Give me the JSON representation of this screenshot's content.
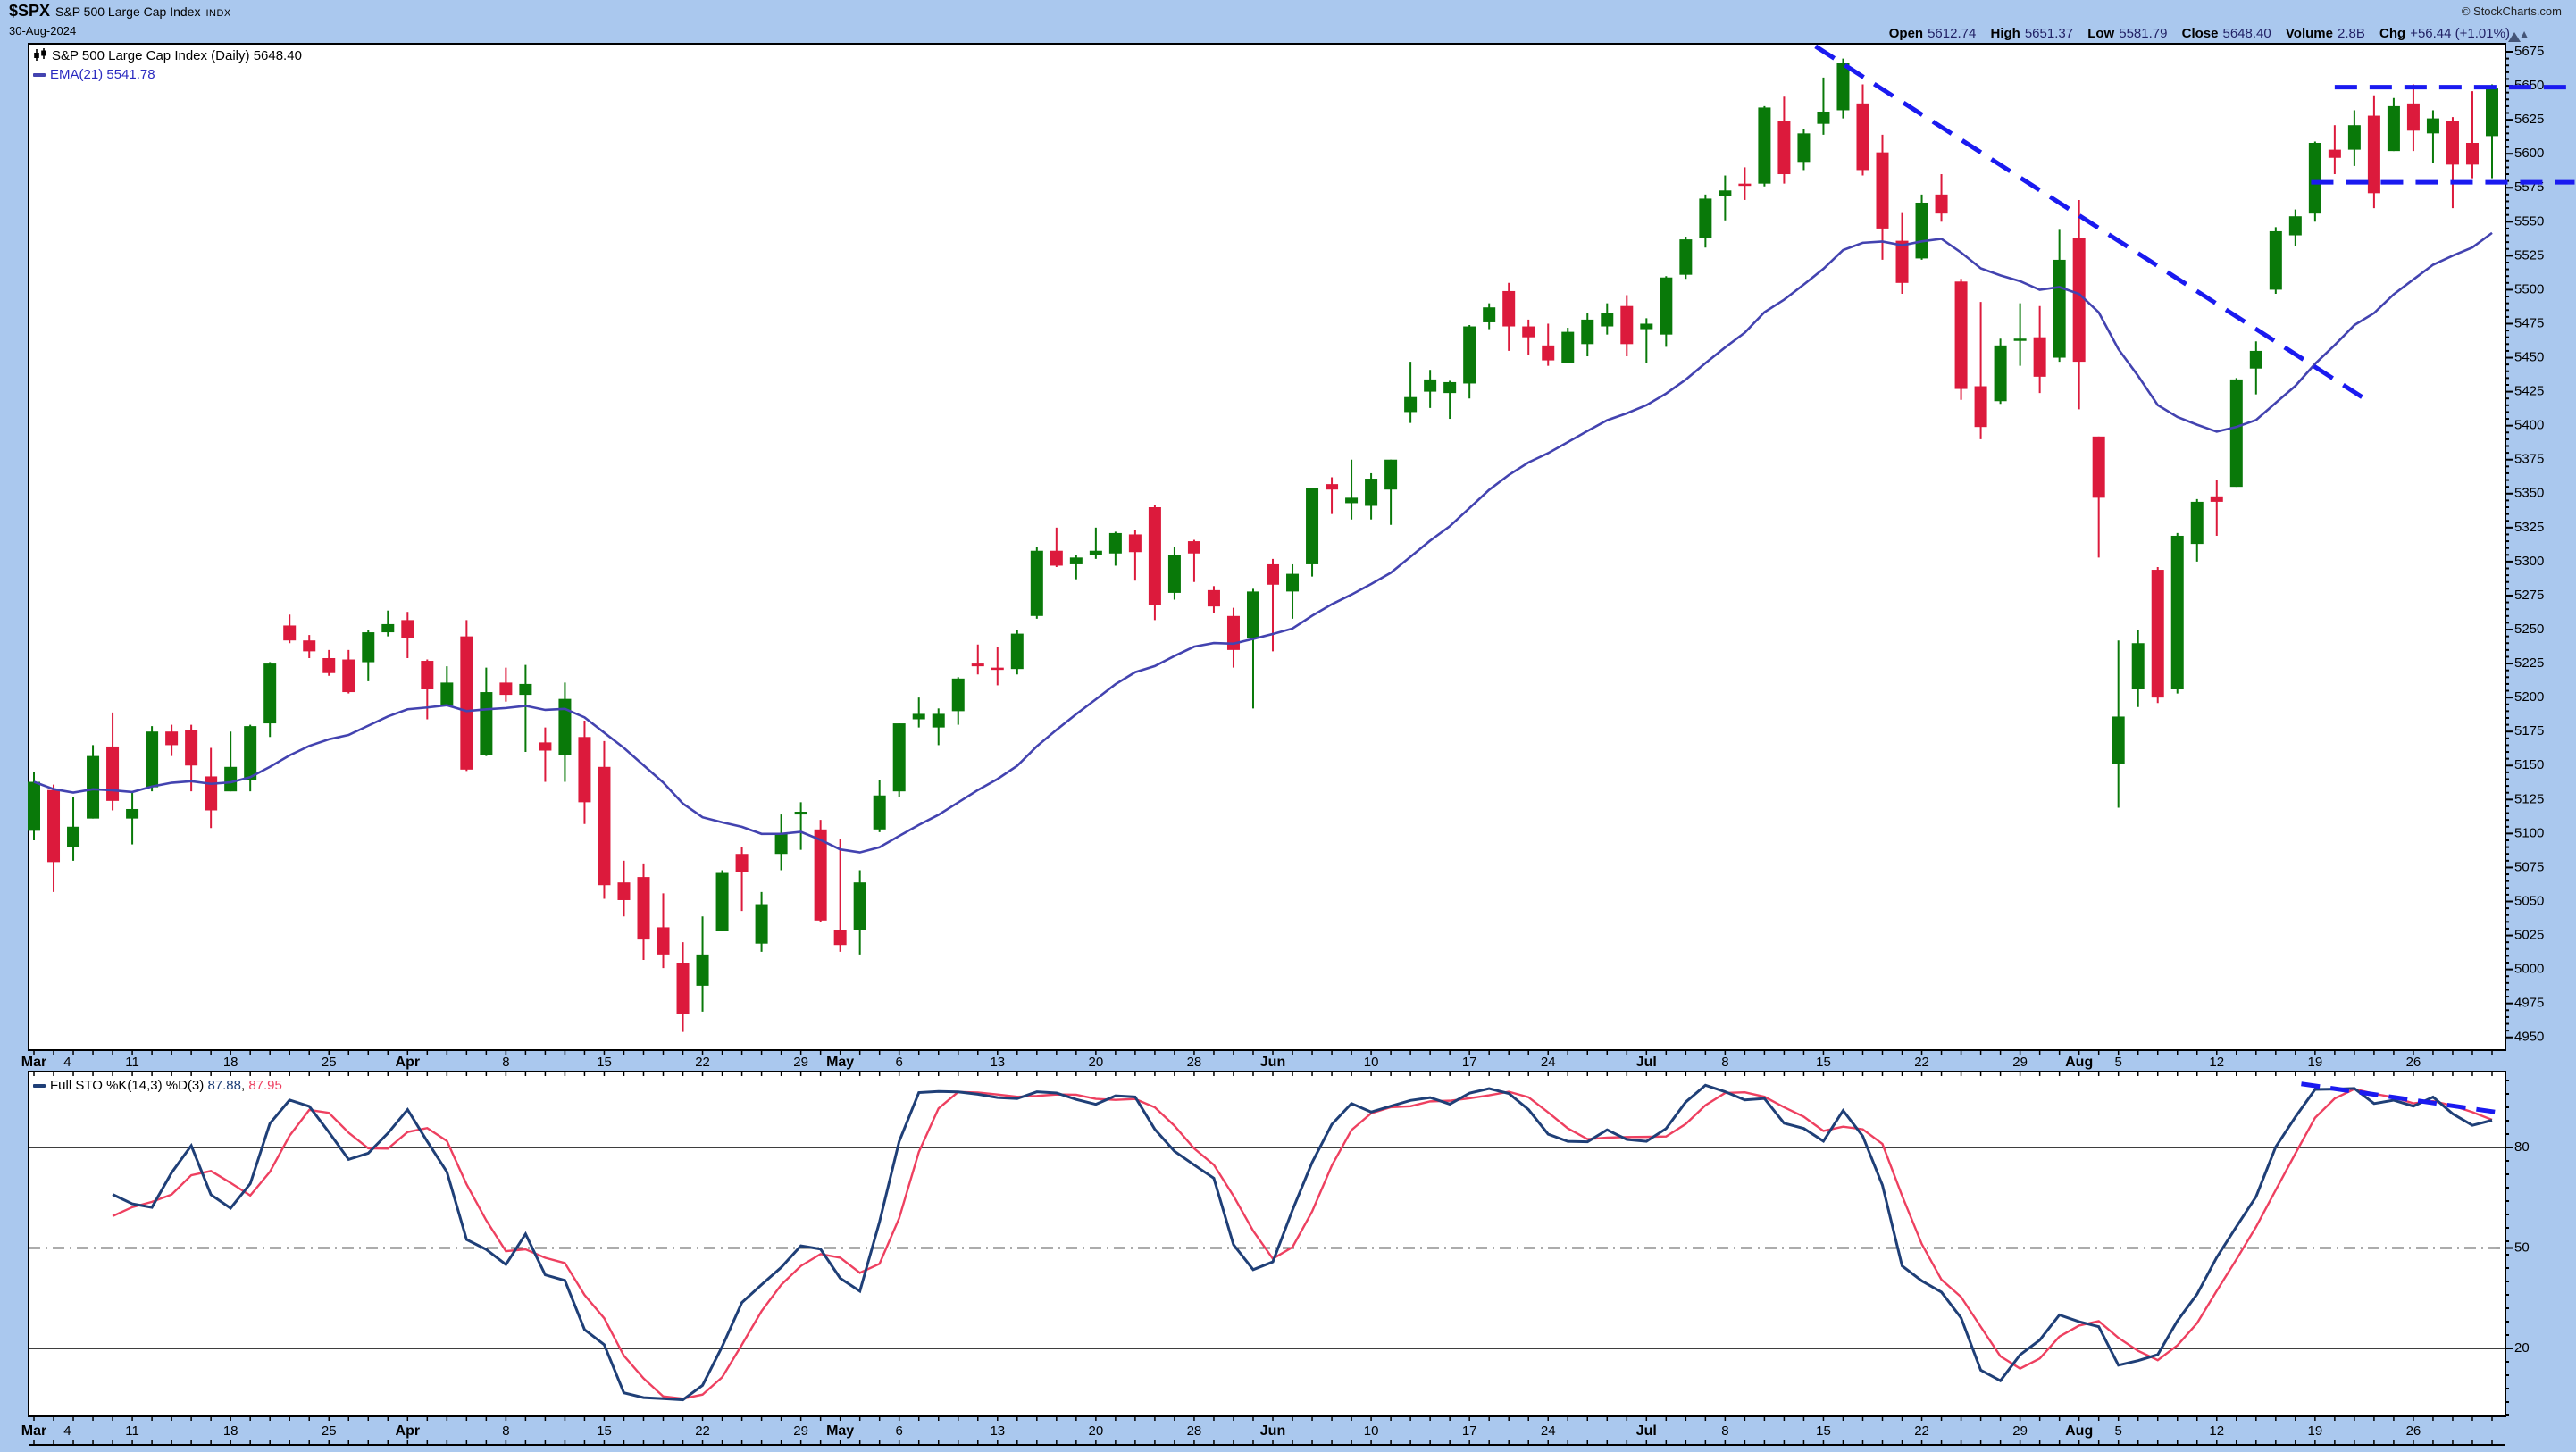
{
  "header": {
    "symbol": "$SPX",
    "name": "S&P 500 Large Cap Index",
    "exchange": "INDX",
    "date": "30-Aug-2024",
    "credit": "© StockCharts.com",
    "change_arrow": "▲"
  },
  "quote": {
    "open_label": "Open",
    "open_value": "5612.74",
    "high_label": "High",
    "high_value": "5651.37",
    "low_label": "Low",
    "low_value": "5581.79",
    "close_label": "Close",
    "close_value": "5648.40",
    "volume_label": "Volume",
    "volume_value": "2.8B",
    "chg_label": "Chg",
    "chg_value": "+56.44 (+1.01%)"
  },
  "price_legend": {
    "series_label": "S&P 500 Large Cap Index (Daily)",
    "series_value": "5648.40",
    "ema_label": "EMA(21)",
    "ema_value": "5541.78"
  },
  "sto_legend": {
    "label": "Full STO %K(14,3) %D(3)",
    "k_value": "87.88",
    "comma": ", ",
    "d_value": "87.95"
  },
  "chart_data": {
    "type": "candlestick",
    "title": "$SPX S&P 500 Large Cap Index (Daily) with EMA(21) and Full Stochastic",
    "colors": {
      "up": "#097909",
      "down": "#dc1a3c",
      "ema": "#4343b0",
      "annotation": "#1a1af0",
      "k": "#1f3f77",
      "d": "#ee4060",
      "background": "#aac8ee",
      "panel": "#ffffff",
      "axis_text": "#000000"
    },
    "price": {
      "ylabel_side": "right",
      "ytick_min": 4950,
      "ytick_max": 5675,
      "ytick_step": 25,
      "ytick_minor_step": 5,
      "ema_period": 21,
      "dates": [
        "Mar 4",
        "Mar 5",
        "Mar 6",
        "Mar 7",
        "Mar 8",
        "Mar 11",
        "Mar 12",
        "Mar 13",
        "Mar 14",
        "Mar 15",
        "Mar 18",
        "Mar 19",
        "Mar 20",
        "Mar 21",
        "Mar 22",
        "Mar 25",
        "Mar 26",
        "Mar 27",
        "Mar 28",
        "Apr 1",
        "Apr 2",
        "Apr 3",
        "Apr 4",
        "Apr 5",
        "Apr 8",
        "Apr 9",
        "Apr 10",
        "Apr 11",
        "Apr 12",
        "Apr 15",
        "Apr 16",
        "Apr 17",
        "Apr 18",
        "Apr 19",
        "Apr 22",
        "Apr 23",
        "Apr 24",
        "Apr 25",
        "Apr 26",
        "Apr 29",
        "Apr 30",
        "May 1",
        "May 2",
        "May 3",
        "May 6",
        "May 7",
        "May 8",
        "May 9",
        "May 10",
        "May 13",
        "May 14",
        "May 15",
        "May 16",
        "May 17",
        "May 20",
        "May 21",
        "May 22",
        "May 23",
        "May 24",
        "May 28",
        "May 29",
        "May 30",
        "May 31",
        "Jun 3",
        "Jun 4",
        "Jun 5",
        "Jun 6",
        "Jun 7",
        "Jun 10",
        "Jun 11",
        "Jun 12",
        "Jun 13",
        "Jun 14",
        "Jun 17",
        "Jun 18",
        "Jun 20",
        "Jun 21",
        "Jun 24",
        "Jun 25",
        "Jun 26",
        "Jun 27",
        "Jun 28",
        "Jul 1",
        "Jul 2",
        "Jul 3",
        "Jul 5",
        "Jul 8",
        "Jul 9",
        "Jul 10",
        "Jul 11",
        "Jul 12",
        "Jul 15",
        "Jul 16",
        "Jul 17",
        "Jul 18",
        "Jul 19",
        "Jul 22",
        "Jul 23",
        "Jul 24",
        "Jul 25",
        "Jul 26",
        "Jul 29",
        "Jul 30",
        "Jul 31",
        "Aug 1",
        "Aug 2",
        "Aug 5",
        "Aug 6",
        "Aug 7",
        "Aug 8",
        "Aug 9",
        "Aug 12",
        "Aug 13",
        "Aug 14",
        "Aug 15",
        "Aug 16",
        "Aug 19",
        "Aug 20",
        "Aug 21",
        "Aug 22",
        "Aug 23",
        "Aug 26",
        "Aug 27",
        "Aug 28",
        "Aug 29",
        "Aug 30"
      ],
      "open": [
        5102,
        5132,
        5090,
        5111,
        5164,
        5111,
        5134,
        5175,
        5176,
        5142,
        5131,
        5139,
        5181,
        5253,
        5242,
        5229,
        5228,
        5226,
        5248,
        5257,
        5227,
        5194,
        5245,
        5158,
        5211,
        5202,
        5167,
        5158,
        5171,
        5149,
        5064,
        5068,
        5031,
        5005,
        4988,
        5028,
        5085,
        5019,
        5085,
        5114,
        5103,
        5029,
        5029,
        5103,
        5131,
        5184,
        5178,
        5190,
        5225,
        5222,
        5221,
        5260,
        5308,
        5298,
        5305,
        5306,
        5320,
        5340,
        5277,
        5315,
        5279,
        5260,
        5244,
        5298,
        5278,
        5298,
        5357,
        5343,
        5341,
        5353,
        5410,
        5425,
        5424,
        5431,
        5476,
        5499,
        5473,
        5459,
        5446,
        5460,
        5473,
        5488,
        5471,
        5467,
        5511,
        5538,
        5569,
        5578,
        5578,
        5624,
        5594,
        5622,
        5632,
        5637,
        5601,
        5536,
        5523,
        5570,
        5506,
        5429,
        5418,
        5463,
        5465,
        5450,
        5538,
        5392,
        5151,
        5206,
        5294,
        5206,
        5313,
        5348,
        5355,
        5442,
        5500,
        5540,
        5556,
        5603,
        5603,
        5628,
        5602,
        5637,
        5615,
        5624,
        5608,
        5613
      ],
      "high": [
        5145,
        5136,
        5127,
        5165,
        5189,
        5131,
        5179,
        5180,
        5180,
        5163,
        5175,
        5180,
        5226,
        5261,
        5246,
        5235,
        5235,
        5250,
        5264,
        5263,
        5228,
        5223,
        5257,
        5222,
        5222,
        5224,
        5178,
        5211,
        5183,
        5168,
        5080,
        5078,
        5056,
        5020,
        5039,
        5073,
        5090,
        5057,
        5114,
        5123,
        5110,
        5096,
        5073,
        5139,
        5181,
        5200,
        5192,
        5215,
        5239,
        5237,
        5250,
        5311,
        5325,
        5305,
        5325,
        5322,
        5323,
        5342,
        5311,
        5316,
        5282,
        5266,
        5280,
        5302,
        5298,
        5354,
        5362,
        5375,
        5365,
        5375,
        5447,
        5441,
        5433,
        5474,
        5490,
        5505,
        5478,
        5475,
        5472,
        5483,
        5490,
        5496,
        5479,
        5510,
        5539,
        5570,
        5584,
        5590,
        5635,
        5642,
        5618,
        5656,
        5670,
        5651,
        5614,
        5557,
        5570,
        5585,
        5508,
        5491,
        5464,
        5490,
        5488,
        5544,
        5566,
        5392,
        5242,
        5250,
        5296,
        5321,
        5346,
        5360,
        5435,
        5462,
        5546,
        5559,
        5609,
        5621,
        5632,
        5643,
        5641,
        5651,
        5632,
        5627,
        5646,
        5651
      ],
      "low": [
        5095,
        5057,
        5080,
        5111,
        5117,
        5092,
        5131,
        5157,
        5131,
        5104,
        5131,
        5131,
        5171,
        5240,
        5229,
        5216,
        5203,
        5212,
        5245,
        5229,
        5184,
        5194,
        5146,
        5157,
        5197,
        5160,
        5138,
        5138,
        5107,
        5052,
        5039,
        5007,
        5001,
        4954,
        4969,
        5028,
        5043,
        5013,
        5073,
        5088,
        5035,
        5013,
        5011,
        5101,
        5127,
        5178,
        5165,
        5180,
        5217,
        5209,
        5217,
        5258,
        5296,
        5287,
        5302,
        5297,
        5286,
        5257,
        5272,
        5285,
        5262,
        5222,
        5192,
        5234,
        5258,
        5289,
        5335,
        5331,
        5331,
        5327,
        5402,
        5413,
        5405,
        5420,
        5471,
        5455,
        5452,
        5444,
        5446,
        5451,
        5467,
        5451,
        5446,
        5458,
        5508,
        5531,
        5551,
        5566,
        5576,
        5578,
        5588,
        5614,
        5626,
        5584,
        5522,
        5497,
        5522,
        5550,
        5419,
        5390,
        5416,
        5444,
        5424,
        5447,
        5412,
        5303,
        5119,
        5193,
        5196,
        5203,
        5300,
        5319,
        5355,
        5423,
        5497,
        5532,
        5550,
        5585,
        5591,
        5560,
        5602,
        5602,
        5593,
        5560,
        5582,
        5582
      ],
      "close": [
        5138,
        5079,
        5105,
        5157,
        5124,
        5118,
        5175,
        5165,
        5150,
        5117,
        5149,
        5179,
        5225,
        5242,
        5234,
        5218,
        5204,
        5248,
        5254,
        5244,
        5206,
        5211,
        5147,
        5204,
        5202,
        5210,
        5161,
        5199,
        5123,
        5062,
        5051,
        5022,
        5011,
        4967,
        5011,
        5071,
        5072,
        5048,
        5100,
        5116,
        5036,
        5018,
        5064,
        5128,
        5181,
        5188,
        5188,
        5214,
        5223,
        5221,
        5247,
        5308,
        5297,
        5303,
        5308,
        5321,
        5307,
        5268,
        5305,
        5306,
        5267,
        5235,
        5278,
        5283,
        5291,
        5354,
        5353,
        5347,
        5361,
        5375,
        5421,
        5434,
        5432,
        5473,
        5487,
        5473,
        5465,
        5448,
        5469,
        5478,
        5483,
        5460,
        5475,
        5509,
        5537,
        5567,
        5573,
        5577,
        5634,
        5585,
        5615,
        5631,
        5667,
        5588,
        5545,
        5505,
        5564,
        5556,
        5427,
        5399,
        5459,
        5464,
        5436,
        5522,
        5447,
        5347,
        5186,
        5240,
        5200,
        5319,
        5344,
        5344,
        5434,
        5455,
        5543,
        5554,
        5608,
        5597,
        5621,
        5571,
        5635,
        5617,
        5626,
        5592,
        5592,
        5648
      ],
      "annotations": [
        {
          "name": "downtrend-line",
          "x1": 90.6,
          "y1": 5679,
          "x2": 118.5,
          "y2": 5420
        },
        {
          "name": "resistance-line",
          "x1": 117.0,
          "y1": 5649,
          "x2": 129.0,
          "y2": 5649
        },
        {
          "name": "support-line",
          "x1": 115.8,
          "y1": 5579,
          "x2": 129.2,
          "y2": 5579
        }
      ]
    },
    "stochastic": {
      "k_period": 14,
      "k_smooth": 3,
      "d_period": 3,
      "yticks": [
        80,
        50,
        20
      ],
      "solid_lines": [
        80,
        20
      ],
      "dashdot_lines": [
        50
      ],
      "last_k": 87.88,
      "last_d": 87.95,
      "annotations": [
        {
          "name": "sto-divergence-line",
          "x1": 115.3,
          "y1": 99.0,
          "x2": 125.4,
          "y2": 90.4
        }
      ]
    },
    "x_labels": [
      {
        "t": "Mar",
        "i": 0,
        "m": 1
      },
      {
        "t": "4",
        "i": 1.7
      },
      {
        "t": "11",
        "i": 5
      },
      {
        "t": "18",
        "i": 10
      },
      {
        "t": "25",
        "i": 15
      },
      {
        "t": "Apr",
        "i": 19,
        "m": 1
      },
      {
        "t": "8",
        "i": 24
      },
      {
        "t": "15",
        "i": 29
      },
      {
        "t": "22",
        "i": 34
      },
      {
        "t": "29",
        "i": 39
      },
      {
        "t": "May",
        "i": 41,
        "m": 1
      },
      {
        "t": "6",
        "i": 44
      },
      {
        "t": "13",
        "i": 49
      },
      {
        "t": "20",
        "i": 54
      },
      {
        "t": "28",
        "i": 59
      },
      {
        "t": "Jun",
        "i": 63,
        "m": 1
      },
      {
        "t": "10",
        "i": 68
      },
      {
        "t": "17",
        "i": 73
      },
      {
        "t": "24",
        "i": 77
      },
      {
        "t": "Jul",
        "i": 82,
        "m": 1
      },
      {
        "t": "8",
        "i": 86
      },
      {
        "t": "15",
        "i": 91
      },
      {
        "t": "22",
        "i": 96
      },
      {
        "t": "29",
        "i": 101
      },
      {
        "t": "Aug",
        "i": 104,
        "m": 1
      },
      {
        "t": "5",
        "i": 106
      },
      {
        "t": "12",
        "i": 111
      },
      {
        "t": "19",
        "i": 116
      },
      {
        "t": "26",
        "i": 121
      }
    ]
  }
}
